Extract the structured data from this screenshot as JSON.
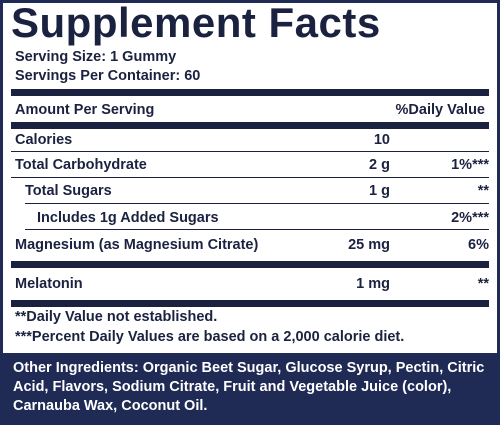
{
  "title": "Supplement Facts",
  "serving_size": "Serving Size: 1 Gummy",
  "servings_per_container": "Servings Per Container: 60",
  "header": {
    "amount_per_serving": "Amount Per Serving",
    "daily_value": "%Daily Value"
  },
  "rows": [
    {
      "name": "Calories",
      "amount": "10"
    },
    {
      "name": "Total Carbohydrate",
      "amount": "2 g",
      "dv": "1%***"
    },
    {
      "name": "Total Sugars",
      "amount": "1 g",
      "dv": "**"
    },
    {
      "name": "Includes 1g Added Sugars",
      "dv": "2%***"
    },
    {
      "name": "Magnesium (as Magnesium Citrate)",
      "amount": "25 mg",
      "dv": "6%"
    },
    {
      "name": "Melatonin",
      "amount": "1 mg",
      "dv": "**"
    }
  ],
  "footnotes": [
    "**Daily Value not established.",
    "***Percent Daily Values are based on a 2,000 calorie diet."
  ],
  "other_ingredients": {
    "label": "Other Ingredients:",
    "text": "Organic Beet Sugar, Glucose Syrup, Pectin, Citric Acid, Flavors, Sodium Citrate, Fruit and Vegetable Juice (color), Carnauba Wax, Coconut Oil."
  }
}
